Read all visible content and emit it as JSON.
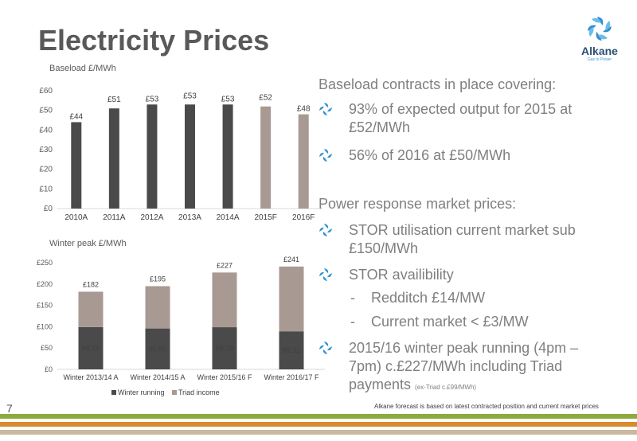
{
  "slide": {
    "title": "Electricity Prices",
    "page_number": "7",
    "footnote": "Alkane forecast is based on latest contracted position and current market prices"
  },
  "logo": {
    "name": "Alkane",
    "tagline": "Gas to Power"
  },
  "colors": {
    "dark_bar": "#4a4a4a",
    "forecast_bar": "#a89a93",
    "stripe_green": "#8faa3c",
    "stripe_orange": "#d88a2e",
    "stripe_tan": "#c9b99e",
    "bullet_blue": "#2f8fd0"
  },
  "right_panel": {
    "heading1": "Baseload contracts in place covering:",
    "bullets1": [
      {
        "text": "93% of expected output for 2015 at £52/MWh"
      },
      {
        "text": "56% of 2016 at £50/MWh"
      }
    ],
    "heading2": "Power response market prices:",
    "bullets2_a": [
      {
        "text": "STOR utilisation current market sub £150/MWh"
      },
      {
        "text": "STOR availibility"
      }
    ],
    "dashes": [
      {
        "mark": "-",
        "text": "Redditch £14/MW"
      },
      {
        "mark": "-",
        "text": "Current market < £3/MW"
      }
    ],
    "bullet_last": {
      "text": "2015/16 winter peak running (4pm – 7pm) c.£227/MWh including Triad payments ",
      "note": "(ex-Triad c.£99/MWh)"
    }
  },
  "chart_data": [
    {
      "type": "bar",
      "title": "Baseload £/MWh",
      "categories": [
        "2010A",
        "2011A",
        "2012A",
        "2013A",
        "2014A",
        "2015F",
        "2016F"
      ],
      "values": [
        44,
        51,
        53,
        53,
        53,
        52,
        48
      ],
      "data_labels": [
        "£44",
        "£51",
        "£53",
        "£53",
        "£53",
        "£52",
        "£48"
      ],
      "forecast": [
        false,
        false,
        false,
        false,
        false,
        true,
        true
      ],
      "ylim": [
        0,
        60
      ],
      "yticks": [
        "£0",
        "£10",
        "£20",
        "£30",
        "£40",
        "£50",
        "£60"
      ],
      "grid": false
    },
    {
      "type": "bar",
      "stacked": true,
      "title": "Winter peak £/MWh",
      "categories": [
        "Winter 2013/14 A",
        "Winter 2014/15 A",
        "Winter 2015/16 F",
        "Winter 2016/17 F"
      ],
      "series": [
        {
          "name": "Winter running",
          "values": [
            99.15,
            95.86,
            98.78,
            89.21
          ],
          "labels": [
            "99.15",
            "95.86",
            "98.78",
            "89.21"
          ]
        },
        {
          "name": "Triad income",
          "values": [
            82.85,
            99.14,
            128.22,
            151.79
          ]
        }
      ],
      "totals": [
        182,
        195,
        227,
        241
      ],
      "total_labels": [
        "£182",
        "£195",
        "£227",
        "£241"
      ],
      "ylim": [
        0,
        250
      ],
      "yticks": [
        "£0",
        "£50",
        "£100",
        "£150",
        "£200",
        "£250"
      ],
      "legend": "bottom",
      "grid": false
    }
  ]
}
